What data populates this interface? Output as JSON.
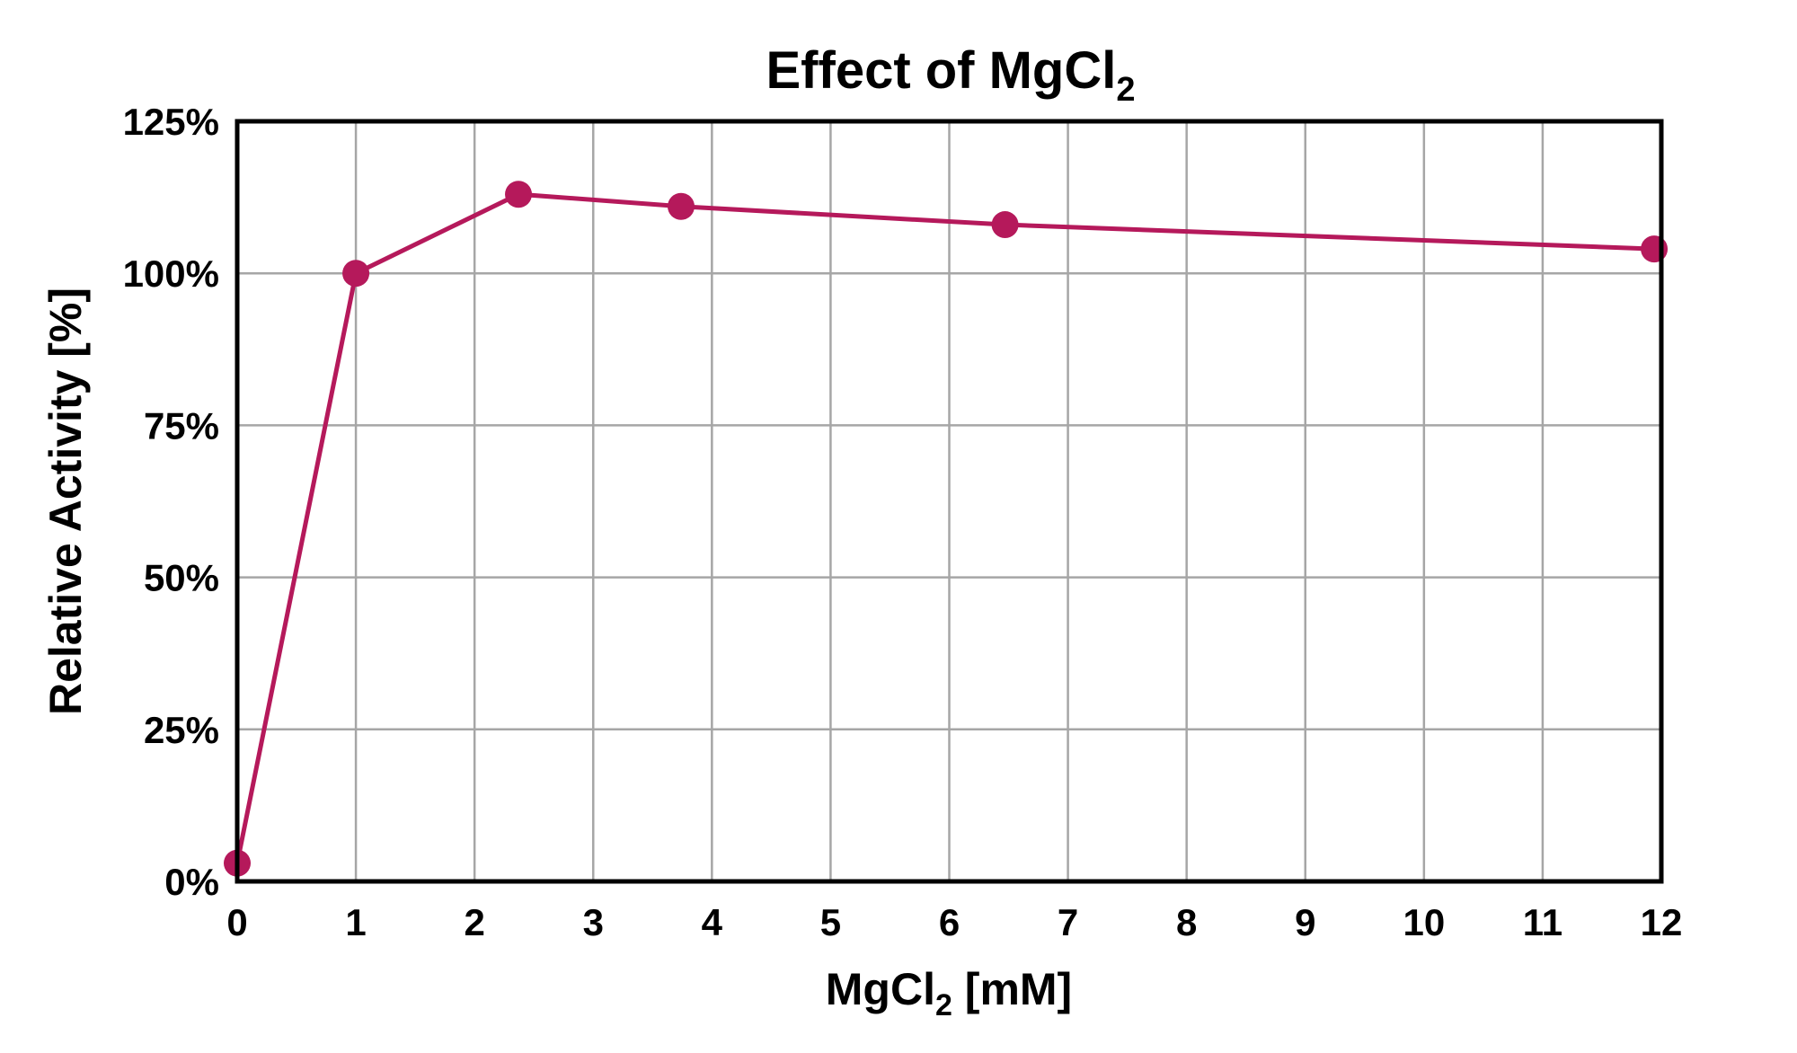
{
  "chart_data": {
    "type": "line",
    "title": "Effect of MgCl",
    "title_subscript": "2",
    "xlabel": "MgCl",
    "xlabel_subscript": "2",
    "xlabel_suffix": " [mM]",
    "ylabel": "Relative Activity [%]",
    "xlim": [
      0,
      12
    ],
    "ylim": [
      0,
      125
    ],
    "xticks": [
      0,
      1,
      2,
      3,
      4,
      5,
      6,
      7,
      8,
      9,
      10,
      11,
      12
    ],
    "xtick_labels": [
      "0",
      "1",
      "2",
      "3",
      "4",
      "5",
      "6",
      "7",
      "8",
      "9",
      "10",
      "11",
      "12"
    ],
    "yticks": [
      0,
      25,
      50,
      75,
      100,
      125
    ],
    "ytick_labels": [
      "0%",
      "25%",
      "50%",
      "75%",
      "100%",
      "125%"
    ],
    "grid": true,
    "series": [
      {
        "name": "Relative Activity",
        "color": "#B5195B",
        "x": [
          0,
          1,
          2.37,
          3.74,
          6.47,
          11.94
        ],
        "y": [
          3,
          100,
          113,
          111,
          108,
          104
        ]
      }
    ]
  }
}
